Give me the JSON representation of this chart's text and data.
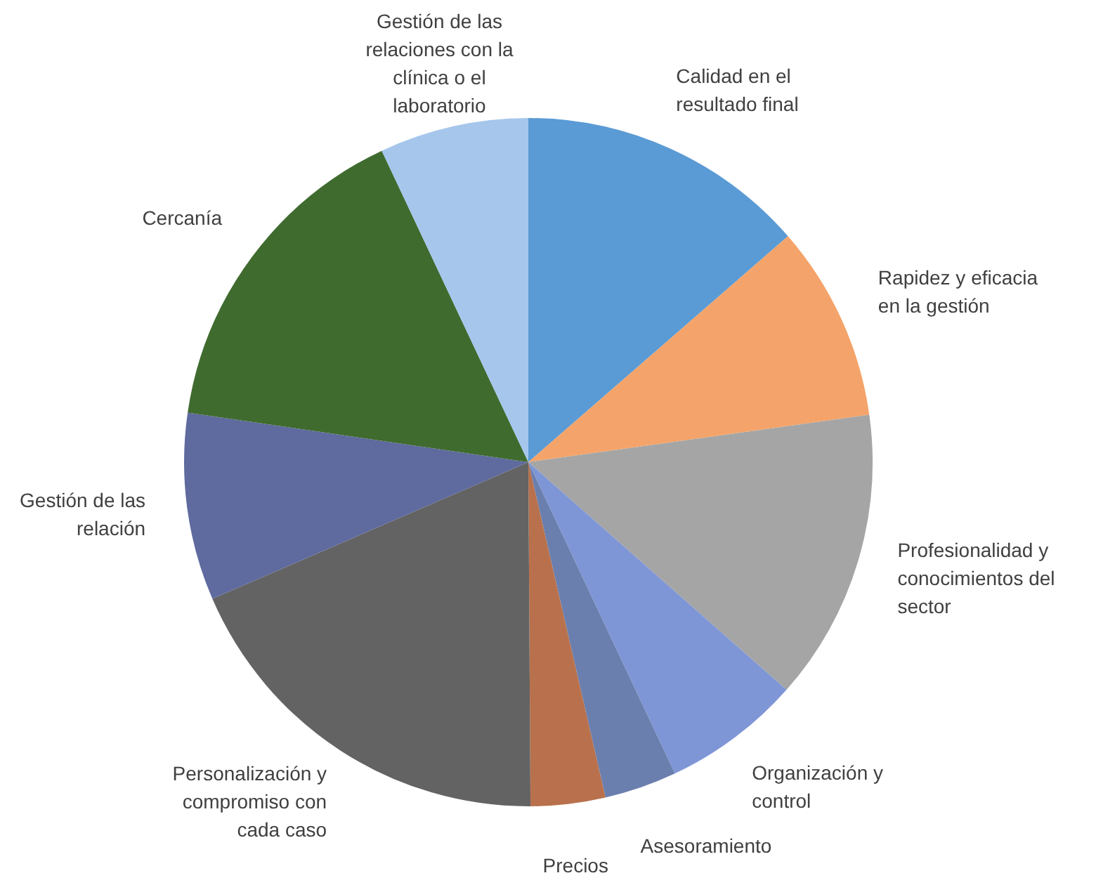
{
  "chart_data": {
    "type": "pie",
    "categories": [
      "Calidad en el resultado final",
      "Rapidez y eficacia en la gestión",
      "Profesionalidad y conocimientos del sector",
      "Organización y control",
      "Asesoramiento",
      "Precios",
      "Personalización y compromiso con cada caso",
      "Gestión de las relación",
      "Cercanía",
      "Gestión de las relaciones con la clínica o el laboratorio"
    ],
    "values": [
      13.6,
      9.2,
      13.7,
      6.5,
      3.4,
      3.5,
      18.6,
      8.8,
      15.7,
      7.0
    ],
    "colors": [
      "#5b9bd5",
      "#f4a46a",
      "#a5a5a5",
      "#7f96d6",
      "#6a7fae",
      "#b8714c",
      "#636363",
      "#5f6a9e",
      "#3f6b2f",
      "#a6c6ec"
    ],
    "legend": false
  }
}
